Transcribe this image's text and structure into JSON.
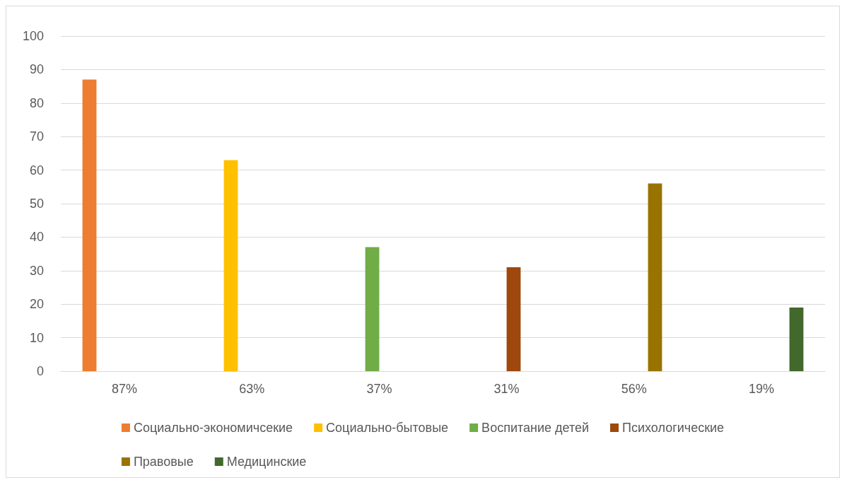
{
  "chart_data": {
    "type": "bar",
    "categories": [
      "87%",
      "63%",
      "37%",
      "31%",
      "56%",
      "19%"
    ],
    "series": [
      {
        "name": "Социально-экономичсекие",
        "color": "#ed7d31",
        "values": [
          87,
          null,
          null,
          null,
          null,
          null
        ]
      },
      {
        "name": "Социально-бытовые",
        "color": "#ffc000",
        "values": [
          null,
          63,
          null,
          null,
          null,
          null
        ]
      },
      {
        "name": "Воспитание детей",
        "color": "#70ad47",
        "values": [
          null,
          null,
          37,
          null,
          null,
          null
        ]
      },
      {
        "name": "Психологические",
        "color": "#9e480e",
        "values": [
          null,
          null,
          null,
          31,
          null,
          null
        ]
      },
      {
        "name": "Правовые",
        "color": "#997300",
        "values": [
          null,
          null,
          null,
          null,
          56,
          null
        ]
      },
      {
        "name": "Медицинские",
        "color": "#43682b",
        "values": [
          null,
          null,
          null,
          null,
          null,
          19
        ]
      }
    ],
    "ylim": [
      0,
      100
    ],
    "yticks": [
      0,
      10,
      20,
      30,
      40,
      50,
      60,
      70,
      80,
      90,
      100
    ],
    "grid": "y",
    "legend": "bottom"
  }
}
